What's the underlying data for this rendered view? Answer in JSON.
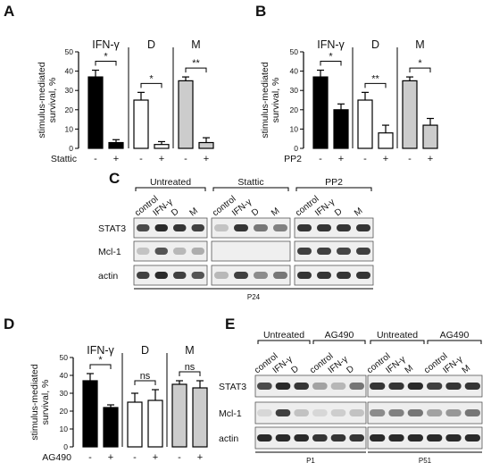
{
  "panels": {
    "A": {
      "label": "A"
    },
    "B": {
      "label": "B"
    },
    "C": {
      "label": "C"
    },
    "D": {
      "label": "D"
    },
    "E": {
      "label": "E"
    }
  },
  "chart_data": [
    {
      "panel": "A",
      "type": "bar",
      "ylabel": "stimulus-mediated survival, %",
      "ylim": [
        0,
        50
      ],
      "yticks": [
        "0",
        "10",
        "20",
        "30",
        "40",
        "50"
      ],
      "groups": [
        "IFN-γ",
        "D",
        "M"
      ],
      "treatment": "Stattic",
      "signs": [
        "-",
        "+",
        "-",
        "+",
        "-",
        "+"
      ],
      "values": [
        37,
        3,
        25,
        2,
        35,
        3
      ],
      "errors": [
        3.5,
        1.5,
        4,
        1.5,
        2,
        2.5
      ],
      "fills": [
        "#000000",
        "#000000",
        "#ffffff",
        "#ffffff",
        "#cccccc",
        "#cccccc"
      ],
      "significance": [
        "*",
        "*",
        "**"
      ]
    },
    {
      "panel": "B",
      "type": "bar",
      "ylabel": "stimulus-mediated survival, %",
      "ylim": [
        0,
        50
      ],
      "yticks": [
        "0",
        "10",
        "20",
        "30",
        "40",
        "50"
      ],
      "groups": [
        "IFN-γ",
        "D",
        "M"
      ],
      "treatment": "PP2",
      "signs": [
        "-",
        "+",
        "-",
        "+",
        "-",
        "+"
      ],
      "values": [
        37,
        20,
        25,
        8,
        35,
        12
      ],
      "errors": [
        3.5,
        3,
        4,
        4,
        2,
        3.5
      ],
      "fills": [
        "#000000",
        "#000000",
        "#ffffff",
        "#ffffff",
        "#cccccc",
        "#cccccc"
      ],
      "significance": [
        "*",
        "**",
        "*"
      ]
    },
    {
      "panel": "D",
      "type": "bar",
      "ylabel": "stimulus-mediated survival, %",
      "ylim": [
        0,
        50
      ],
      "yticks": [
        "0",
        "10",
        "20",
        "30",
        "40",
        "50"
      ],
      "groups": [
        "IFN-γ",
        "D",
        "M"
      ],
      "treatment": "AG490",
      "signs": [
        "-",
        "+",
        "-",
        "+",
        "-",
        "+"
      ],
      "values": [
        37,
        22,
        25,
        26,
        35,
        33
      ],
      "errors": [
        4,
        1.5,
        5,
        6,
        2,
        4
      ],
      "fills": [
        "#000000",
        "#000000",
        "#ffffff",
        "#ffffff",
        "#cccccc",
        "#cccccc"
      ],
      "significance": [
        "*",
        "ns",
        "ns"
      ]
    }
  ],
  "blotC": {
    "conditions": [
      "Untreated",
      "Stattic",
      "PP2"
    ],
    "lanes": [
      "control",
      "IFN-γ",
      "D",
      "M"
    ],
    "rows": [
      "STAT3",
      "Mcl-1",
      "actin"
    ],
    "passage": "P24"
  },
  "blotE": {
    "conditions": [
      "Untreated",
      "AG490",
      "Untreated",
      "AG490"
    ],
    "lanes": [
      "control",
      "IFN-γ",
      "D",
      "control",
      "IFN-γ",
      "D",
      "control",
      "IFN-γ",
      "M",
      "control",
      "IFN-γ",
      "M"
    ],
    "rows": [
      "STAT3",
      "Mcl-1",
      "actin"
    ],
    "passages": [
      "P1",
      "P51"
    ]
  }
}
